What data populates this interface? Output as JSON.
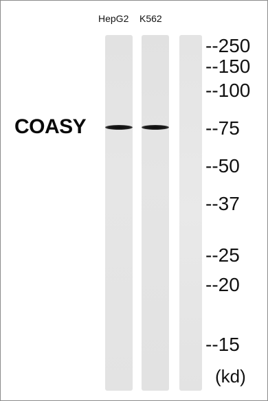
{
  "lanes": [
    {
      "label": "HepG2",
      "band_present": true
    },
    {
      "label": "K562",
      "band_present": true
    },
    {
      "label": "",
      "band_present": false
    }
  ],
  "protein_label": "COASY",
  "markers": [
    "--250",
    "--150",
    "--100",
    "--75",
    "--50",
    "--37",
    "--25",
    "--20",
    "--15"
  ],
  "unit_label": "(kd)"
}
